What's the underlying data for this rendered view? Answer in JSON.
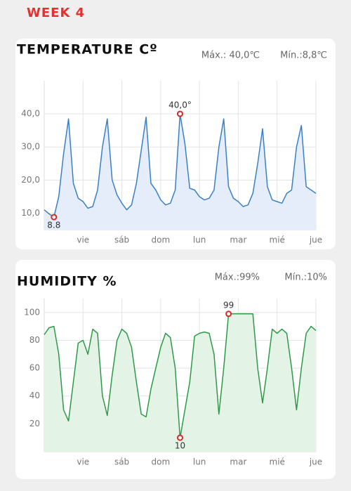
{
  "header": {
    "title": "WEEK 4"
  },
  "chart_data": [
    {
      "type": "line",
      "title": "TEMPERATURE Cº",
      "max_label": "Máx.: 40,0℃",
      "min_label": "Mín.:8,8℃",
      "x": [
        0,
        0.125,
        0.25,
        0.375,
        0.5,
        0.625,
        0.75,
        0.875,
        1,
        1.125,
        1.25,
        1.375,
        1.5,
        1.625,
        1.75,
        1.875,
        2,
        2.125,
        2.25,
        2.375,
        2.5,
        2.625,
        2.75,
        2.875,
        3,
        3.125,
        3.25,
        3.375,
        3.5,
        3.625,
        3.75,
        3.875,
        4,
        4.125,
        4.25,
        4.375,
        4.5,
        4.625,
        4.75,
        4.875,
        5,
        5.125,
        5.25,
        5.375,
        5.5,
        5.625,
        5.75,
        5.875,
        6,
        6.125,
        6.25,
        6.375,
        6.5,
        6.625,
        6.75,
        6.875,
        7
      ],
      "series": [
        {
          "color": "#3a80c8",
          "fill": "#e4edf9",
          "values": [
            11,
            9.8,
            8.8,
            15,
            28,
            38.5,
            19,
            14.5,
            13.5,
            11.5,
            12,
            17,
            30,
            38.5,
            20,
            15.5,
            13,
            11,
            12.5,
            19,
            29,
            39,
            19,
            17,
            14,
            12.5,
            13,
            17,
            40,
            31,
            17.5,
            17,
            15,
            14,
            14.5,
            17,
            30,
            38.5,
            18,
            14.5,
            13.5,
            12,
            12.5,
            16,
            25,
            35.5,
            18,
            14,
            13.5,
            13,
            16,
            17,
            30,
            36.5,
            18,
            17,
            16
          ]
        }
      ],
      "xlim": [
        0,
        7
      ],
      "xticks": [
        {
          "value": 1,
          "label": "vie"
        },
        {
          "value": 2,
          "label": "sáb"
        },
        {
          "value": 3,
          "label": "dom"
        },
        {
          "value": 4,
          "label": "lun"
        },
        {
          "value": 5,
          "label": "mar"
        },
        {
          "value": 6,
          "label": "mié"
        },
        {
          "value": 7,
          "label": "jue"
        }
      ],
      "ylim": [
        5,
        50
      ],
      "yticks": [
        {
          "value": 10,
          "label": "10,0"
        },
        {
          "value": 20,
          "label": "20,0"
        },
        {
          "value": 30,
          "label": "30,0"
        },
        {
          "value": 40,
          "label": "40,0"
        }
      ],
      "grid": true,
      "annotations": [
        {
          "text": "40,0°",
          "x": 3.5,
          "y": 40
        },
        {
          "text": "8.8",
          "x": 0.25,
          "y": 8.8
        }
      ]
    },
    {
      "type": "line",
      "title": "HUMIDITY %",
      "max_label": "Máx.:99%",
      "min_label": "Mín.:10%",
      "x": [
        0,
        0.125,
        0.25,
        0.375,
        0.5,
        0.625,
        0.75,
        0.875,
        1,
        1.125,
        1.25,
        1.375,
        1.5,
        1.625,
        1.75,
        1.875,
        2,
        2.125,
        2.25,
        2.375,
        2.5,
        2.625,
        2.75,
        2.875,
        3,
        3.125,
        3.25,
        3.375,
        3.5,
        3.625,
        3.75,
        3.875,
        4,
        4.125,
        4.25,
        4.375,
        4.5,
        4.625,
        4.75,
        4.875,
        5,
        5.125,
        5.25,
        5.375,
        5.5,
        5.625,
        5.75,
        5.875,
        6,
        6.125,
        6.25,
        6.375,
        6.5,
        6.625,
        6.75,
        6.875,
        7
      ],
      "series": [
        {
          "color": "#2e9a48",
          "fill": "#e3f4e7",
          "values": [
            84,
            89,
            90,
            70,
            30,
            22,
            50,
            78,
            80,
            70,
            88,
            85,
            40,
            26,
            55,
            80,
            88,
            85,
            75,
            50,
            27,
            25,
            45,
            60,
            75,
            85,
            82,
            60,
            10,
            30,
            50,
            83,
            85,
            86,
            85,
            70,
            27,
            60,
            99,
            99,
            99,
            99,
            99,
            99,
            60,
            35,
            60,
            88,
            85,
            88,
            85,
            60,
            30,
            60,
            85,
            90,
            87
          ]
        }
      ],
      "xlim": [
        0,
        7
      ],
      "xticks": [
        {
          "value": 1,
          "label": "vie"
        },
        {
          "value": 2,
          "label": "sáb"
        },
        {
          "value": 3,
          "label": "dom"
        },
        {
          "value": 4,
          "label": "lun"
        },
        {
          "value": 5,
          "label": "mar"
        },
        {
          "value": 6,
          "label": "mié"
        },
        {
          "value": 7,
          "label": "jue"
        }
      ],
      "ylim": [
        0,
        110
      ],
      "yticks": [
        20,
        40,
        60,
        80,
        100
      ],
      "grid": true,
      "annotations": [
        {
          "text": "99",
          "x": 4.75,
          "y": 99
        },
        {
          "text": "10",
          "x": 3.5,
          "y": 10
        }
      ]
    }
  ]
}
